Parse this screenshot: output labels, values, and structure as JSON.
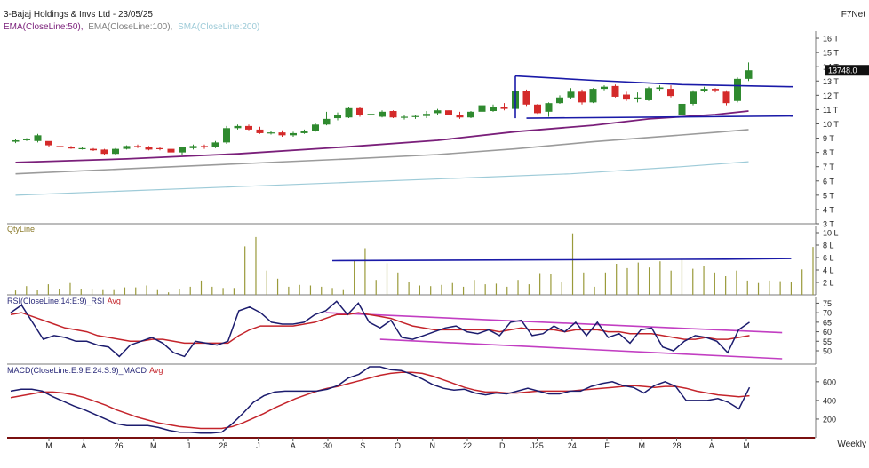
{
  "header": {
    "title": "3-Bajaj Holdings & Invs Ltd - 23/05/25",
    "brand": "F7Net",
    "ma_legend": [
      {
        "text": "EMA(CloseLine:50),",
        "color": "#7a1f7a"
      },
      {
        "text": "EMA(CloseLine:100),",
        "color": "#808080"
      },
      {
        "text": "SMA(CloseLine:200)",
        "color": "#9ecbd8"
      }
    ]
  },
  "footer": {
    "period": "Weekly"
  },
  "chart_data": [
    {
      "type": "candlestick",
      "name": "price",
      "y_unit": "T",
      "ylim": [
        3,
        16.5
      ],
      "yticks": [
        "3 T",
        "4 T",
        "5 T",
        "6 T",
        "7 T",
        "8 T",
        "9 T",
        "10 T",
        "11 T",
        "12 T",
        "13 T",
        "14 T",
        "15 T",
        "16 T"
      ],
      "last_label": "13748.0",
      "x_labels": [
        "M",
        "A",
        "26",
        "M",
        "J",
        "28",
        "J",
        "A",
        "30",
        "S",
        "O",
        "N",
        "22",
        "D",
        "J25",
        "24",
        "F",
        "M",
        "28",
        "A",
        "M"
      ],
      "candles": [
        [
          8.75,
          8.95,
          8.65,
          8.85
        ],
        [
          8.85,
          9.0,
          8.8,
          8.95
        ],
        [
          8.8,
          9.3,
          8.7,
          9.2
        ],
        [
          8.8,
          8.75,
          8.4,
          8.5
        ],
        [
          8.45,
          8.5,
          8.3,
          8.35
        ],
        [
          8.35,
          8.45,
          8.25,
          8.3
        ],
        [
          8.3,
          8.4,
          8.2,
          8.3
        ],
        [
          8.25,
          8.3,
          8.1,
          8.15
        ],
        [
          8.2,
          8.25,
          7.8,
          7.9
        ],
        [
          7.9,
          8.3,
          7.85,
          8.25
        ],
        [
          8.25,
          8.5,
          8.2,
          8.45
        ],
        [
          8.45,
          8.55,
          8.3,
          8.35
        ],
        [
          8.35,
          8.45,
          8.15,
          8.2
        ],
        [
          8.3,
          8.4,
          8.15,
          8.25
        ],
        [
          8.25,
          8.35,
          7.75,
          8.0
        ],
        [
          8.0,
          8.4,
          7.8,
          8.35
        ],
        [
          8.3,
          8.55,
          8.2,
          8.45
        ],
        [
          8.45,
          8.55,
          8.25,
          8.35
        ],
        [
          8.35,
          8.8,
          8.3,
          8.7
        ],
        [
          8.7,
          9.85,
          8.6,
          9.7
        ],
        [
          9.7,
          9.95,
          9.6,
          9.85
        ],
        [
          9.85,
          9.95,
          9.55,
          9.6
        ],
        [
          9.6,
          9.8,
          9.3,
          9.35
        ],
        [
          9.35,
          9.5,
          9.25,
          9.4
        ],
        [
          9.4,
          9.55,
          9.1,
          9.2
        ],
        [
          9.2,
          9.45,
          9.1,
          9.35
        ],
        [
          9.35,
          9.6,
          9.3,
          9.5
        ],
        [
          9.5,
          10.05,
          9.45,
          9.95
        ],
        [
          9.95,
          10.85,
          9.9,
          10.35
        ],
        [
          10.4,
          10.8,
          10.25,
          10.6
        ],
        [
          10.45,
          11.2,
          10.4,
          11.1
        ],
        [
          11.1,
          11.15,
          10.5,
          10.6
        ],
        [
          10.6,
          10.8,
          10.45,
          10.7
        ],
        [
          10.5,
          10.95,
          10.45,
          10.85
        ],
        [
          10.9,
          10.95,
          10.4,
          10.45
        ],
        [
          10.45,
          10.65,
          10.3,
          10.5
        ],
        [
          10.5,
          10.65,
          10.35,
          10.55
        ],
        [
          10.55,
          10.9,
          10.4,
          10.7
        ],
        [
          10.75,
          11.05,
          10.65,
          10.95
        ],
        [
          10.95,
          10.95,
          10.6,
          10.65
        ],
        [
          10.65,
          10.85,
          10.35,
          10.45
        ],
        [
          10.45,
          10.9,
          10.4,
          10.85
        ],
        [
          10.85,
          11.35,
          10.8,
          11.3
        ],
        [
          10.9,
          11.35,
          10.85,
          11.2
        ],
        [
          11.2,
          11.45,
          10.95,
          11.05
        ],
        [
          11.05,
          12.4,
          11.0,
          12.3
        ],
        [
          12.3,
          12.4,
          11.25,
          11.35
        ],
        [
          11.35,
          11.4,
          10.7,
          10.75
        ],
        [
          10.85,
          11.5,
          10.5,
          11.45
        ],
        [
          11.45,
          12.0,
          11.4,
          11.85
        ],
        [
          11.85,
          12.5,
          11.75,
          12.25
        ],
        [
          12.25,
          12.4,
          11.35,
          11.5
        ],
        [
          11.5,
          12.5,
          11.45,
          12.45
        ],
        [
          12.45,
          12.7,
          12.35,
          12.6
        ],
        [
          12.65,
          12.75,
          11.85,
          11.9
        ],
        [
          12.05,
          12.25,
          11.6,
          11.7
        ],
        [
          11.75,
          12.2,
          11.5,
          11.85
        ],
        [
          11.65,
          12.6,
          11.6,
          12.5
        ],
        [
          12.45,
          12.7,
          12.3,
          12.55
        ],
        [
          12.45,
          12.7,
          11.85,
          11.95
        ],
        [
          10.65,
          11.5,
          10.55,
          11.4
        ],
        [
          11.4,
          12.35,
          11.3,
          12.25
        ],
        [
          12.3,
          12.6,
          12.2,
          12.45
        ],
        [
          12.45,
          12.5,
          12.2,
          12.35
        ],
        [
          12.25,
          12.35,
          11.3,
          11.45
        ],
        [
          11.6,
          13.25,
          11.5,
          13.15
        ],
        [
          13.15,
          14.3,
          13.0,
          13.75
        ]
      ],
      "ema50": [
        [
          0,
          7.3
        ],
        [
          10,
          7.55
        ],
        [
          20,
          7.9
        ],
        [
          30,
          8.4
        ],
        [
          38,
          8.85
        ],
        [
          45,
          9.45
        ],
        [
          52,
          9.9
        ],
        [
          57,
          10.35
        ],
        [
          63,
          10.65
        ],
        [
          66,
          10.9
        ]
      ],
      "ema100": [
        [
          0,
          6.5
        ],
        [
          10,
          6.85
        ],
        [
          20,
          7.2
        ],
        [
          30,
          7.55
        ],
        [
          38,
          7.85
        ],
        [
          45,
          8.25
        ],
        [
          52,
          8.75
        ],
        [
          57,
          9.05
        ],
        [
          63,
          9.4
        ],
        [
          66,
          9.6
        ]
      ],
      "sma200": [
        [
          0,
          5.0
        ],
        [
          10,
          5.3
        ],
        [
          20,
          5.6
        ],
        [
          30,
          5.9
        ],
        [
          40,
          6.2
        ],
        [
          50,
          6.5
        ],
        [
          60,
          7.0
        ],
        [
          66,
          7.35
        ]
      ],
      "trendlines": [
        [
          [
            45,
            13.35
          ],
          [
            52,
            13.05
          ],
          [
            60,
            12.75
          ],
          [
            70,
            12.6
          ]
        ],
        [
          [
            45,
            13.35
          ],
          [
            45,
            10.4
          ]
        ],
        [
          [
            46,
            10.4
          ],
          [
            70,
            10.55
          ]
        ]
      ]
    },
    {
      "type": "bar",
      "name": "volume",
      "label": "QtyLine",
      "y_unit": "L",
      "ylim": [
        0,
        11
      ],
      "yticks": [
        "2 L",
        "4 L",
        "6 L",
        "8 L",
        "10 L"
      ],
      "values": [
        0.7,
        1.4,
        0.8,
        1.7,
        1.0,
        1.9,
        1.0,
        1.0,
        0.9,
        0.9,
        1.2,
        1.2,
        1.5,
        0.9,
        0.4,
        1.0,
        1.3,
        2.3,
        1.3,
        1.1,
        1.1,
        7.8,
        9.3,
        3.9,
        2.6,
        1.3,
        1.6,
        1.5,
        1.3,
        1.1,
        0.9,
        5.6,
        7.5,
        2.4,
        5.1,
        3.6,
        2.0,
        1.5,
        1.4,
        1.6,
        1.9,
        1.3,
        2.4,
        1.7,
        1.8,
        1.3,
        2.4,
        1.7,
        3.5,
        3.4,
        2.0,
        9.9,
        3.6,
        1.3,
        3.6,
        5.0,
        4.3,
        5.2,
        4.4,
        5.4,
        3.9,
        5.8,
        4.2,
        4.6,
        3.6,
        3.0,
        3.9,
        2.3,
        1.9,
        2.3,
        2.2,
        2.1,
        4.1,
        7.7
      ],
      "trendline": [
        [
          29,
          5.5
        ],
        [
          65,
          5.75
        ],
        [
          71,
          5.85
        ]
      ]
    },
    {
      "type": "line",
      "name": "rsi",
      "label_parts": [
        {
          "text": "RSI(CloseLine:14:E:9)_RSI",
          "color": "#2b2b7a"
        },
        {
          "text": "Avg",
          "color": "#c4242b"
        }
      ],
      "ylim": [
        43,
        78
      ],
      "yticks": [
        "50",
        "55",
        "60",
        "65",
        "70",
        "75"
      ],
      "rsi": [
        70,
        74,
        65,
        56,
        58,
        57,
        55,
        55,
        53,
        52,
        47,
        53,
        55,
        57,
        54,
        49,
        47,
        55,
        54,
        53,
        55,
        71,
        73,
        70,
        65,
        64,
        64,
        65,
        69,
        71,
        76,
        69,
        75,
        65,
        62,
        66,
        57,
        56,
        58,
        60,
        62,
        63,
        60,
        59,
        61,
        58,
        65,
        66,
        58,
        59,
        63,
        60,
        65,
        58,
        65,
        57,
        59,
        54,
        61,
        62,
        52,
        50,
        55,
        58,
        57,
        55,
        49,
        61,
        65
      ],
      "avg": [
        69,
        70,
        68,
        66,
        64,
        62,
        61,
        60,
        58,
        57,
        56,
        55,
        55,
        56,
        56,
        55,
        54,
        54,
        54,
        54,
        54,
        58,
        61,
        63,
        63,
        63,
        63,
        64,
        65,
        67,
        69,
        69,
        70,
        69,
        68,
        67,
        65,
        63,
        62,
        61,
        61,
        61,
        61,
        61,
        61,
        60,
        61,
        62,
        61,
        61,
        61,
        60,
        61,
        61,
        61,
        60,
        60,
        59,
        59,
        59,
        58,
        57,
        56,
        56,
        57,
        56,
        56,
        57,
        58
      ],
      "trendlines": [
        [
          [
            29,
            70
          ],
          [
            71,
            59.5
          ]
        ],
        [
          [
            34,
            56
          ],
          [
            71,
            45.8
          ]
        ]
      ]
    },
    {
      "type": "line",
      "name": "macd",
      "label_parts": [
        {
          "text": "MACD(CloseLine:E:9:E:24:S:9)_MACD",
          "color": "#2b2b7a"
        },
        {
          "text": "Avg",
          "color": "#c4242b"
        }
      ],
      "ylim": [
        0,
        760
      ],
      "yticks": [
        "200",
        "400",
        "600"
      ],
      "macd": [
        500,
        520,
        520,
        500,
        440,
        390,
        340,
        300,
        250,
        200,
        150,
        130,
        130,
        130,
        110,
        80,
        60,
        60,
        50,
        50,
        60,
        150,
        260,
        380,
        450,
        490,
        500,
        500,
        500,
        500,
        520,
        560,
        640,
        680,
        760,
        760,
        730,
        720,
        680,
        630,
        570,
        530,
        510,
        520,
        480,
        460,
        480,
        470,
        500,
        530,
        500,
        470,
        470,
        500,
        500,
        550,
        580,
        600,
        560,
        540,
        480,
        560,
        600,
        550,
        400,
        400,
        400,
        420,
        380,
        310,
        540
      ],
      "avg": [
        430,
        450,
        470,
        490,
        490,
        480,
        460,
        430,
        390,
        350,
        300,
        260,
        220,
        190,
        160,
        140,
        120,
        110,
        100,
        100,
        100,
        120,
        160,
        210,
        260,
        320,
        370,
        420,
        460,
        500,
        530,
        550,
        580,
        610,
        640,
        670,
        690,
        700,
        700,
        690,
        660,
        620,
        580,
        540,
        510,
        490,
        490,
        480,
        480,
        490,
        500,
        500,
        500,
        500,
        510,
        520,
        530,
        540,
        550,
        560,
        550,
        540,
        550,
        550,
        530,
        500,
        480,
        460,
        450,
        440,
        450
      ]
    }
  ]
}
